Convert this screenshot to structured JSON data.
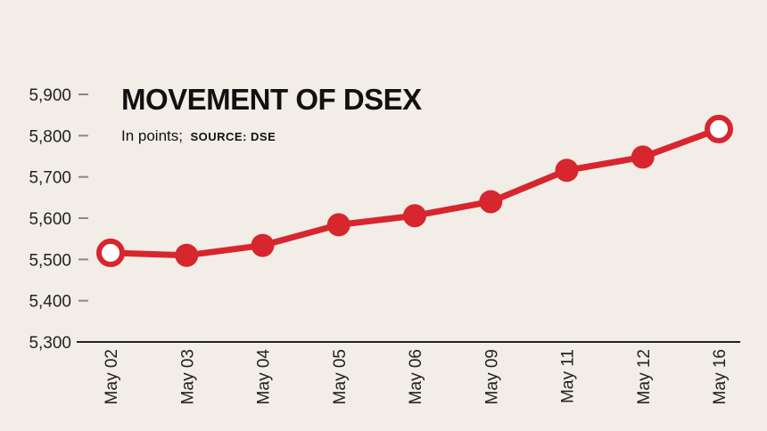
{
  "chart_data": {
    "type": "line",
    "title": "MOVEMENT OF DSEX",
    "subtitle": "In points;",
    "source": "SOURCE: DSE",
    "categories": [
      "May 02",
      "May 03",
      "May 04",
      "May 05",
      "May 06",
      "May 09",
      "May 11",
      "May 12",
      "May 16"
    ],
    "series": [
      {
        "values": [
          5516,
          5510,
          5534,
          5584,
          5606,
          5640,
          5716,
          5748,
          5816
        ]
      }
    ],
    "ylim": [
      5300,
      5900
    ],
    "yticks": [
      5300,
      5400,
      5500,
      5600,
      5700,
      5800,
      5900
    ],
    "ytick_labels": [
      "5,300",
      "5,400",
      "5,500",
      "5,600",
      "5,700",
      "5,800",
      "5,900"
    ],
    "grid": false,
    "highlight_endpoints": true
  },
  "colors": {
    "background": "#f2eee7",
    "line": "#d7262e",
    "endpoint_fill": "#ffffff",
    "axis": "#888888",
    "text": "#111111"
  }
}
